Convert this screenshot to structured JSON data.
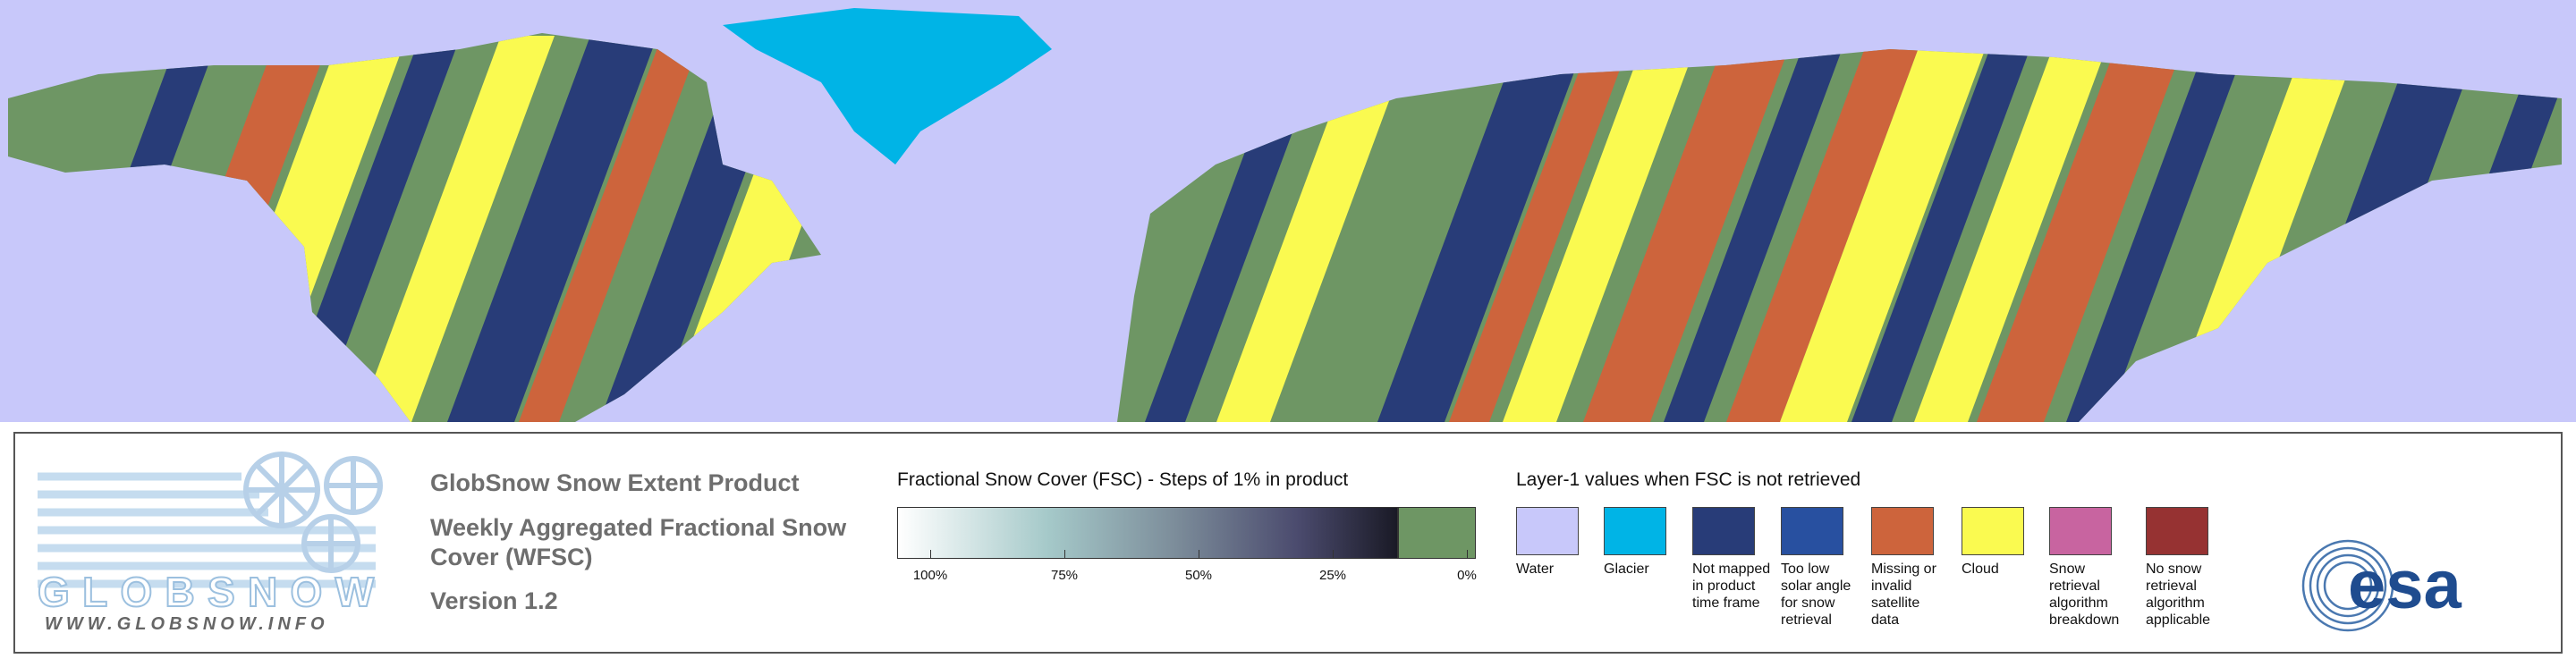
{
  "header": {
    "product": "GlobSnow Snow Extent Product",
    "description": "Weekly Aggregated Fractional Snow Cover (WFSC)",
    "version": "Version 1.2"
  },
  "logo": {
    "name": "GLOBSNOW",
    "url": "WWW.GLOBSNOW.INFO",
    "agency": "esa"
  },
  "fsc_scale": {
    "title": "Fractional Snow Cover (FSC) - Steps of 1% in product",
    "ticks": [
      {
        "value": 100,
        "label": "100%"
      },
      {
        "value": 75,
        "label": "75%"
      },
      {
        "value": 50,
        "label": "50%"
      },
      {
        "value": 25,
        "label": "25%"
      },
      {
        "value": 0,
        "label": "0%"
      }
    ],
    "snow_free_color": "#6e9664"
  },
  "layer1": {
    "title": "Layer-1 values when FSC is not retrieved",
    "items": [
      {
        "label": "Water",
        "color": "#c8c8fa"
      },
      {
        "label": "Glacier",
        "color": "#00b4e6"
      },
      {
        "label": "Not mapped in product time frame",
        "color": "#283c78"
      },
      {
        "label": "Too low solar angle for snow retrieval",
        "color": "#2850a0"
      },
      {
        "label": "Missing or invalid satellite data",
        "color": "#cd643c"
      },
      {
        "label": "Cloud",
        "color": "#fafa50"
      },
      {
        "label": "Snow retrieval algorithm breakdown",
        "color": "#c864a0"
      },
      {
        "label": "No snow retrieval algorithm applicable",
        "color": "#963232"
      }
    ]
  }
}
